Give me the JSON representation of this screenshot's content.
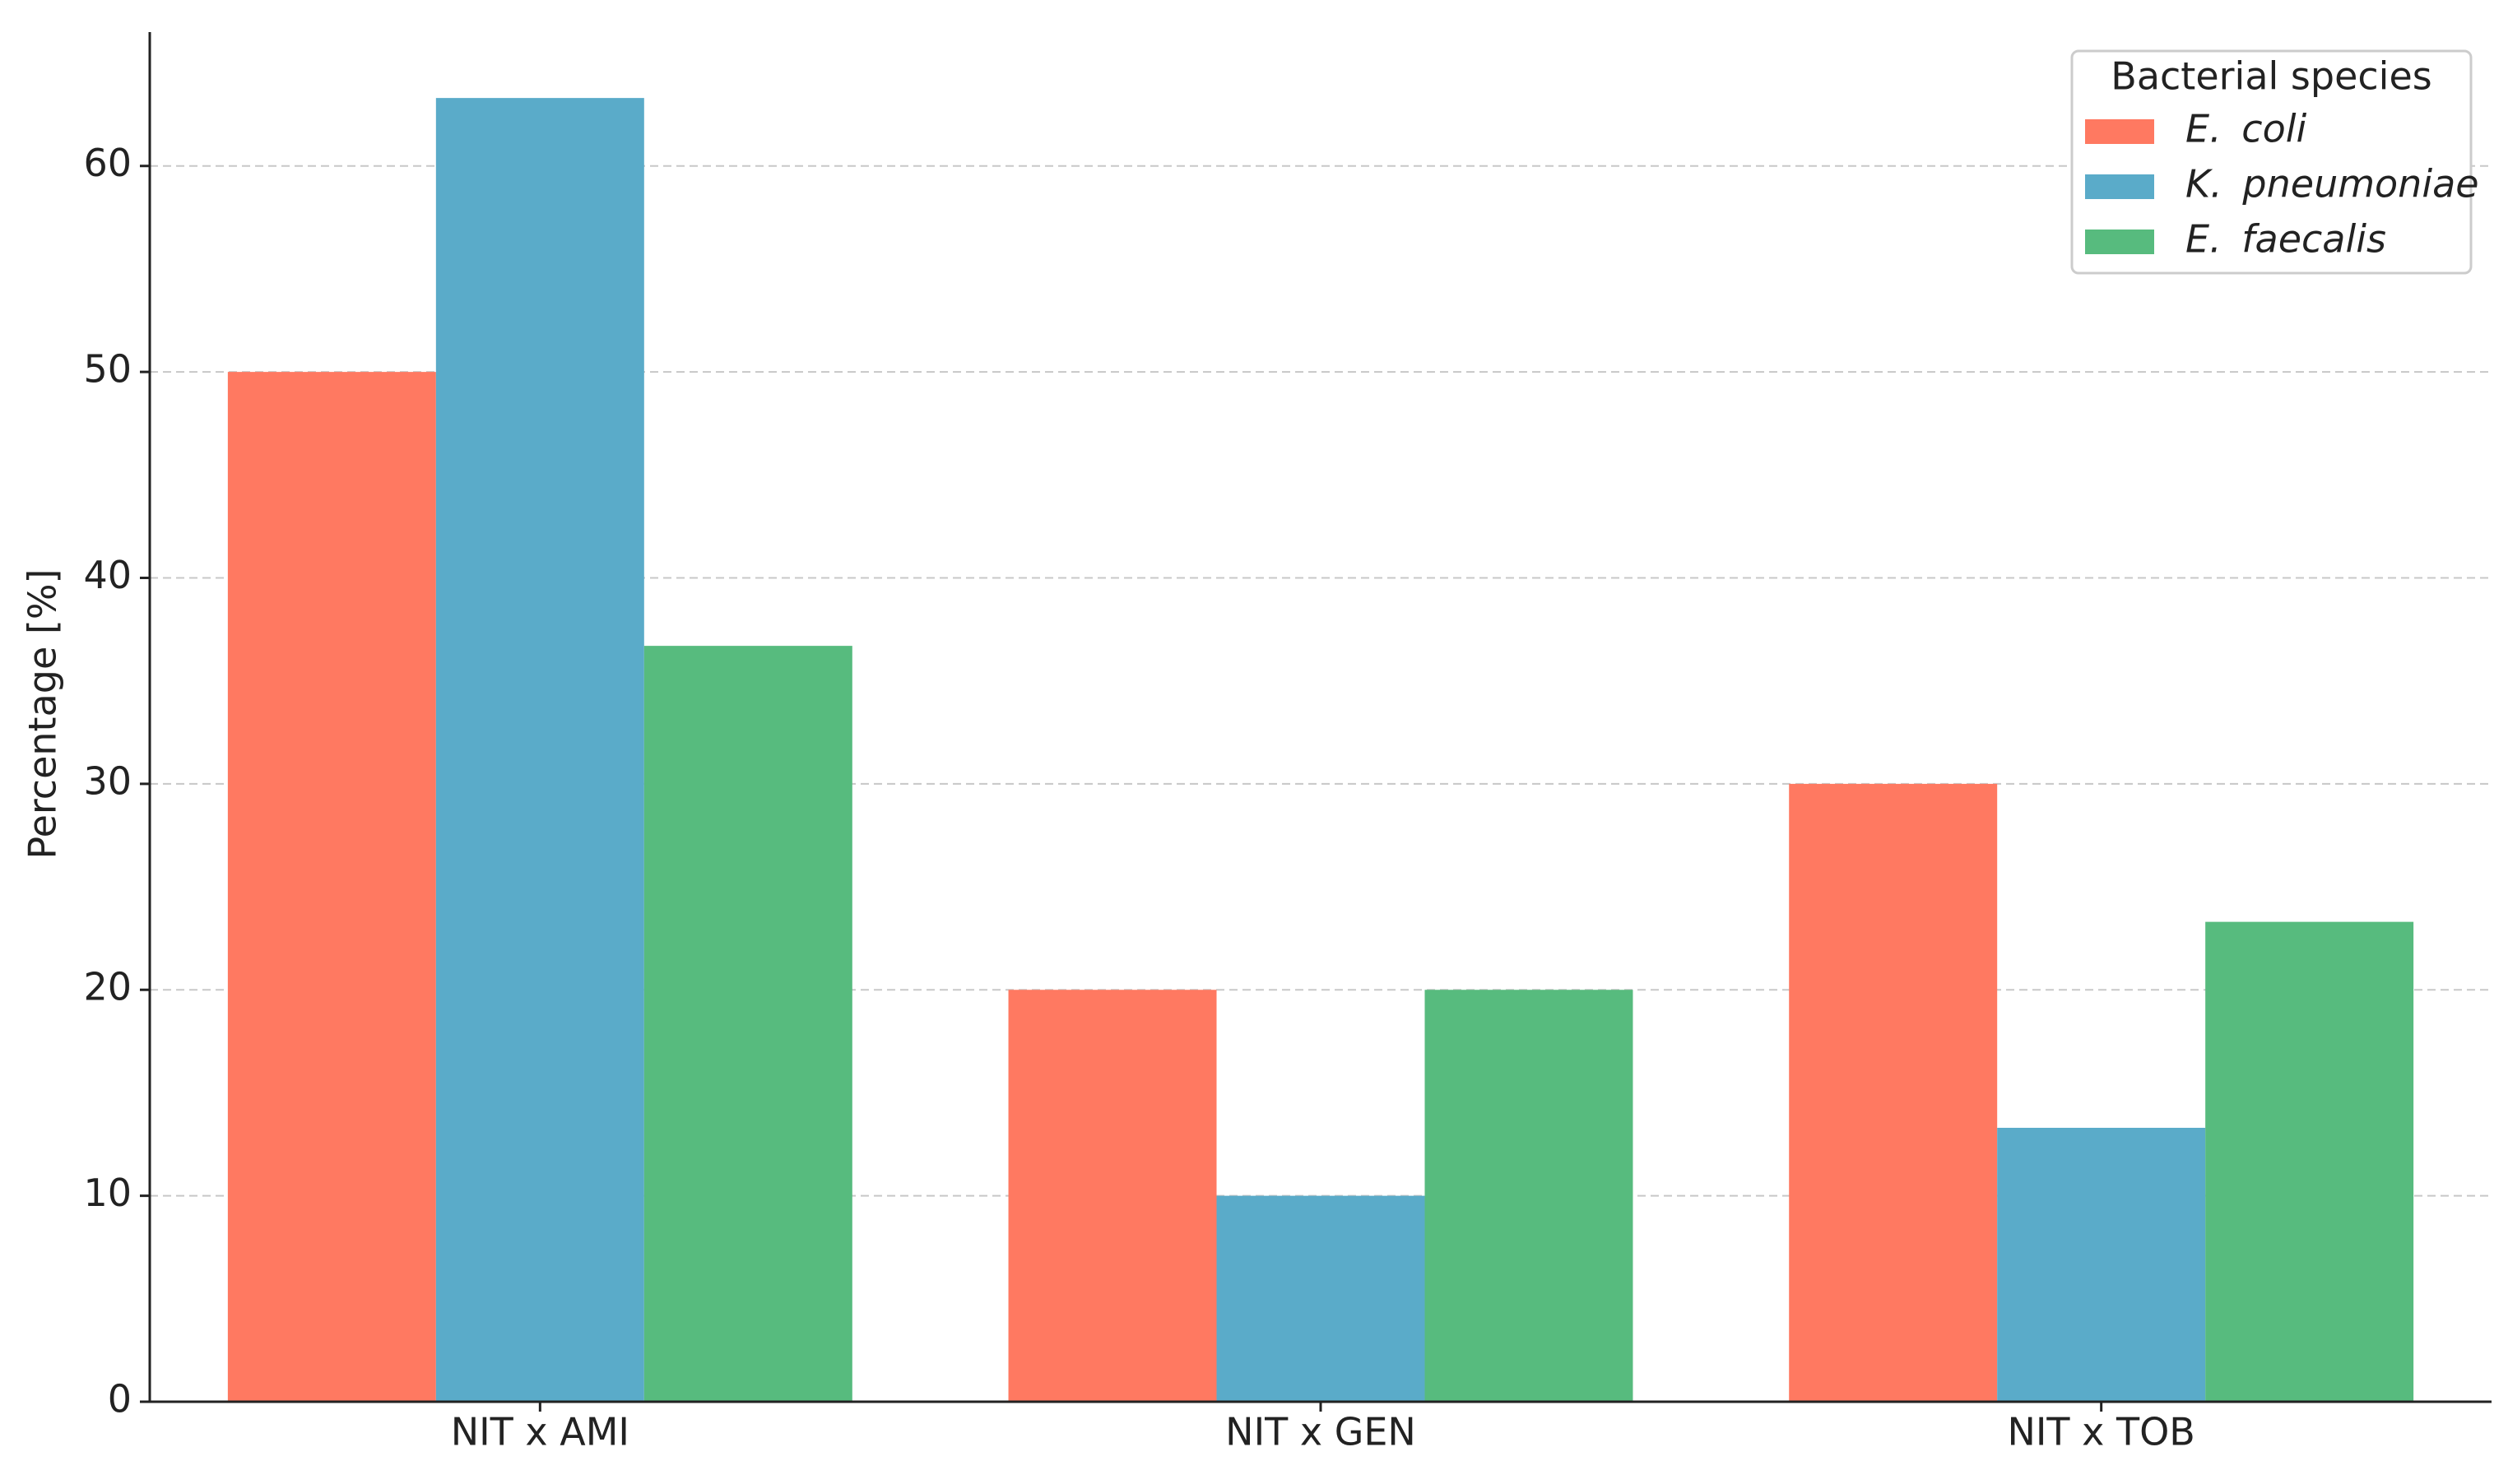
{
  "chart_data": {
    "type": "bar",
    "y_label": "Percentage [%]",
    "categories": [
      "NIT x AMI",
      "NIT x GEN",
      "NIT x TOB"
    ],
    "series": [
      {
        "name": "E. coli",
        "color": "#ff7961",
        "values": [
          50,
          20,
          30
        ]
      },
      {
        "name": "K. pneumoniae",
        "color": "#5aabc9",
        "values": [
          63.3,
          10,
          13.3
        ]
      },
      {
        "name": "E. faecalis",
        "color": "#57bb7e",
        "values": [
          36.7,
          20,
          23.3
        ]
      }
    ],
    "legend_title": "Bacterial species",
    "legend": "upper right",
    "ylim": [
      0,
      66.5
    ],
    "yticks": [
      0,
      10,
      20,
      30,
      40,
      50,
      60
    ],
    "grid": true
  }
}
